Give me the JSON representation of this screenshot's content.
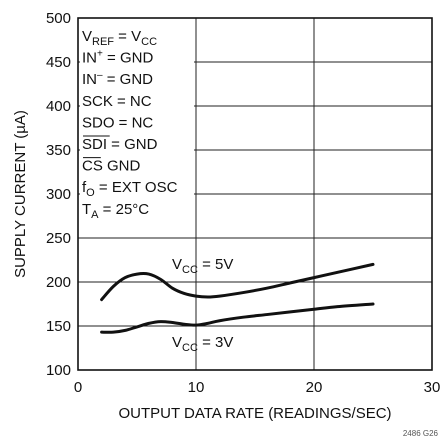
{
  "chart_data": {
    "type": "line",
    "xlabel": "OUTPUT DATA RATE (READINGS/SEC)",
    "ylabel": "SUPPLY CURRENT (µA)",
    "xlim": [
      0,
      30
    ],
    "ylim": [
      100,
      500
    ],
    "xticks": [
      0,
      10,
      20,
      30
    ],
    "yticks": [
      100,
      150,
      200,
      250,
      300,
      350,
      400,
      450,
      500
    ],
    "grid": true,
    "series": [
      {
        "name": "VCC = 5V",
        "label": {
          "main": "V",
          "sub": "CC",
          "rest": " = 5V"
        },
        "x": [
          2,
          3,
          4,
          5,
          6,
          7,
          8,
          9,
          10,
          11,
          12,
          14,
          16,
          18,
          20,
          22,
          25
        ],
        "y": [
          180,
          195,
          205,
          209,
          209,
          203,
          193,
          187,
          184,
          183,
          184,
          188,
          193,
          199,
          205,
          211,
          220
        ]
      },
      {
        "name": "VCC = 3V",
        "label": {
          "main": "V",
          "sub": "CC",
          "rest": " = 3V"
        },
        "x": [
          2,
          3,
          4,
          5,
          6,
          7,
          8,
          9,
          10,
          11,
          12,
          14,
          16,
          18,
          20,
          22,
          25
        ],
        "y": [
          143,
          143,
          145,
          149,
          153,
          155,
          154,
          152,
          151,
          153,
          156,
          160,
          163,
          166,
          169,
          172,
          175
        ]
      }
    ],
    "conditions": [
      {
        "main": "V",
        "sub": "REF",
        "rest": " = V",
        "sub2": "CC"
      },
      {
        "main": "IN",
        "sup": "+",
        "rest": " = GND"
      },
      {
        "main": "IN",
        "sup": "–",
        "rest": " = GND"
      },
      {
        "main": "SCK = NC"
      },
      {
        "main": "SDO = NC"
      },
      {
        "main": "SDI = GND",
        "overline": "SDI"
      },
      {
        "main": "CS GND",
        "overline": "CS"
      },
      {
        "main": "f",
        "sub": "O",
        "rest": " = EXT OSC"
      },
      {
        "main": "T",
        "sub": "A",
        "rest": " = 25°C"
      }
    ],
    "code": "2486 G26"
  }
}
